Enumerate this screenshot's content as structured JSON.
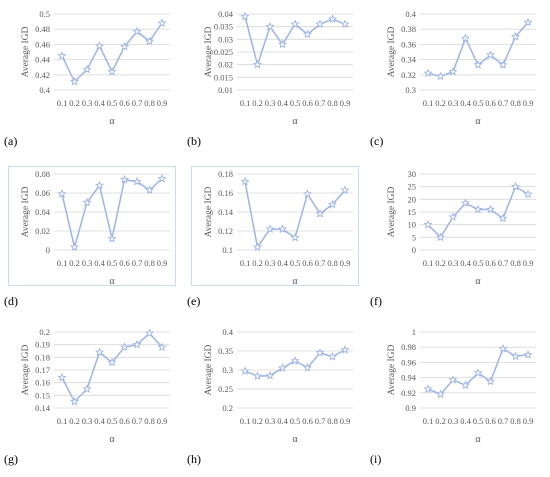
{
  "style": {
    "line_color": "#9db4e8",
    "marker_fill": "#ffffff",
    "marker_stroke": "#9db4e8",
    "grid_color": "#d9d9d9",
    "axis_text_color": "#595959"
  },
  "chart_data": [
    {
      "type": "line",
      "panel": "(a)",
      "xlabel": "α",
      "ylabel": "Average IGD",
      "categories": [
        "0.1",
        "0.2",
        "0.3",
        "0.4",
        "0.5",
        "0.6",
        "0.7",
        "0.8",
        "0.9"
      ],
      "yticks": [
        "0.4",
        "0.42",
        "0.44",
        "0.46",
        "0.48",
        "0.5"
      ],
      "ylim": [
        0.4,
        0.5
      ],
      "values": [
        0.445,
        0.411,
        0.427,
        0.458,
        0.424,
        0.457,
        0.477,
        0.464,
        0.488
      ]
    },
    {
      "type": "line",
      "panel": "(b)",
      "xlabel": "α",
      "ylabel": "Average IGD",
      "categories": [
        "0.1",
        "0.2",
        "0.3",
        "0.4",
        "0.5",
        "0.6",
        "0.7",
        "0.8",
        "0.9"
      ],
      "yticks": [
        "0.01",
        "0.015",
        "0.02",
        "0.025",
        "0.03",
        "0.035",
        "0.04"
      ],
      "ylim": [
        0.01,
        0.04
      ],
      "values": [
        0.039,
        0.02,
        0.035,
        0.028,
        0.036,
        0.032,
        0.036,
        0.038,
        0.036
      ]
    },
    {
      "type": "line",
      "panel": "(c)",
      "xlabel": "α",
      "ylabel": "Average IGD",
      "categories": [
        "0.1",
        "0.2",
        "0.3",
        "0.4",
        "0.5",
        "0.6",
        "0.7",
        "0.8",
        "0.9"
      ],
      "yticks": [
        "0.3",
        "0.32",
        "0.34",
        "0.36",
        "0.38",
        "0.4"
      ],
      "ylim": [
        0.3,
        0.4
      ],
      "values": [
        0.322,
        0.318,
        0.324,
        0.368,
        0.333,
        0.346,
        0.333,
        0.37,
        0.389
      ]
    },
    {
      "type": "line",
      "panel": "(d)",
      "xlabel": "α",
      "ylabel": "Average IGD",
      "categories": [
        "0.1",
        "0.2",
        "0.3",
        "0.4",
        "0.5",
        "0.6",
        "0.7",
        "0.8",
        "0.9"
      ],
      "yticks": [
        "0",
        "0.02",
        "0.04",
        "0.06",
        "0.08"
      ],
      "ylim": [
        0,
        0.08
      ],
      "values": [
        0.059,
        0.003,
        0.05,
        0.068,
        0.012,
        0.074,
        0.072,
        0.063,
        0.075
      ]
    },
    {
      "type": "line",
      "panel": "(e)",
      "xlabel": "α",
      "ylabel": "Average IGD",
      "categories": [
        "0.1",
        "0.2",
        "0.3",
        "0.4",
        "0.5",
        "0.6",
        "0.7",
        "0.8",
        "0.9"
      ],
      "yticks": [
        "0.1",
        "0.12",
        "0.14",
        "0.16",
        "0.18"
      ],
      "ylim": [
        0.1,
        0.18
      ],
      "values": [
        0.172,
        0.103,
        0.122,
        0.122,
        0.113,
        0.159,
        0.138,
        0.148,
        0.163
      ]
    },
    {
      "type": "line",
      "panel": "(f)",
      "xlabel": "α",
      "ylabel": "Average IGD",
      "categories": [
        "0.1",
        "0.2",
        "0.3",
        "0.4",
        "0.5",
        "0.6",
        "0.7",
        "0.8",
        "0.9"
      ],
      "yticks": [
        "0",
        "5",
        "10",
        "15",
        "20",
        "25",
        "30"
      ],
      "ylim": [
        0,
        30
      ],
      "values": [
        10,
        5,
        13,
        18.5,
        16,
        16,
        12.5,
        25,
        22
      ]
    },
    {
      "type": "line",
      "panel": "(g)",
      "xlabel": "α",
      "ylabel": "Average IGD",
      "categories": [
        "0.1",
        "0.2",
        "0.3",
        "0.4",
        "0.5",
        "0.6",
        "0.7",
        "0.8",
        "0.9"
      ],
      "yticks": [
        "0.14",
        "0.15",
        "0.16",
        "0.17",
        "0.18",
        "0.19",
        "0.2"
      ],
      "ylim": [
        0.14,
        0.2
      ],
      "values": [
        0.164,
        0.145,
        0.155,
        0.184,
        0.176,
        0.188,
        0.19,
        0.199,
        0.188
      ]
    },
    {
      "type": "line",
      "panel": "(h)",
      "xlabel": "α",
      "ylabel": "Average IGD",
      "categories": [
        "0.1",
        "0.2",
        "0.3",
        "0.4",
        "0.5",
        "0.6",
        "0.7",
        "0.8",
        "0.9"
      ],
      "yticks": [
        "0.2",
        "0.25",
        "0.3",
        "0.35",
        "0.4"
      ],
      "ylim": [
        0.2,
        0.4
      ],
      "values": [
        0.297,
        0.284,
        0.285,
        0.305,
        0.324,
        0.306,
        0.345,
        0.335,
        0.353
      ]
    },
    {
      "type": "line",
      "panel": "(i)",
      "xlabel": "α",
      "ylabel": "Average IGD",
      "categories": [
        "0.1",
        "0.2",
        "0.3",
        "0.4",
        "0.5",
        "0.6",
        "0.7",
        "0.8",
        "0.9"
      ],
      "yticks": [
        "0.9",
        "0.92",
        "0.94",
        "0.96",
        "0.98",
        "1"
      ],
      "ylim": [
        0.9,
        1.0
      ],
      "values": [
        0.925,
        0.918,
        0.937,
        0.93,
        0.946,
        0.935,
        0.978,
        0.968,
        0.97
      ]
    }
  ]
}
